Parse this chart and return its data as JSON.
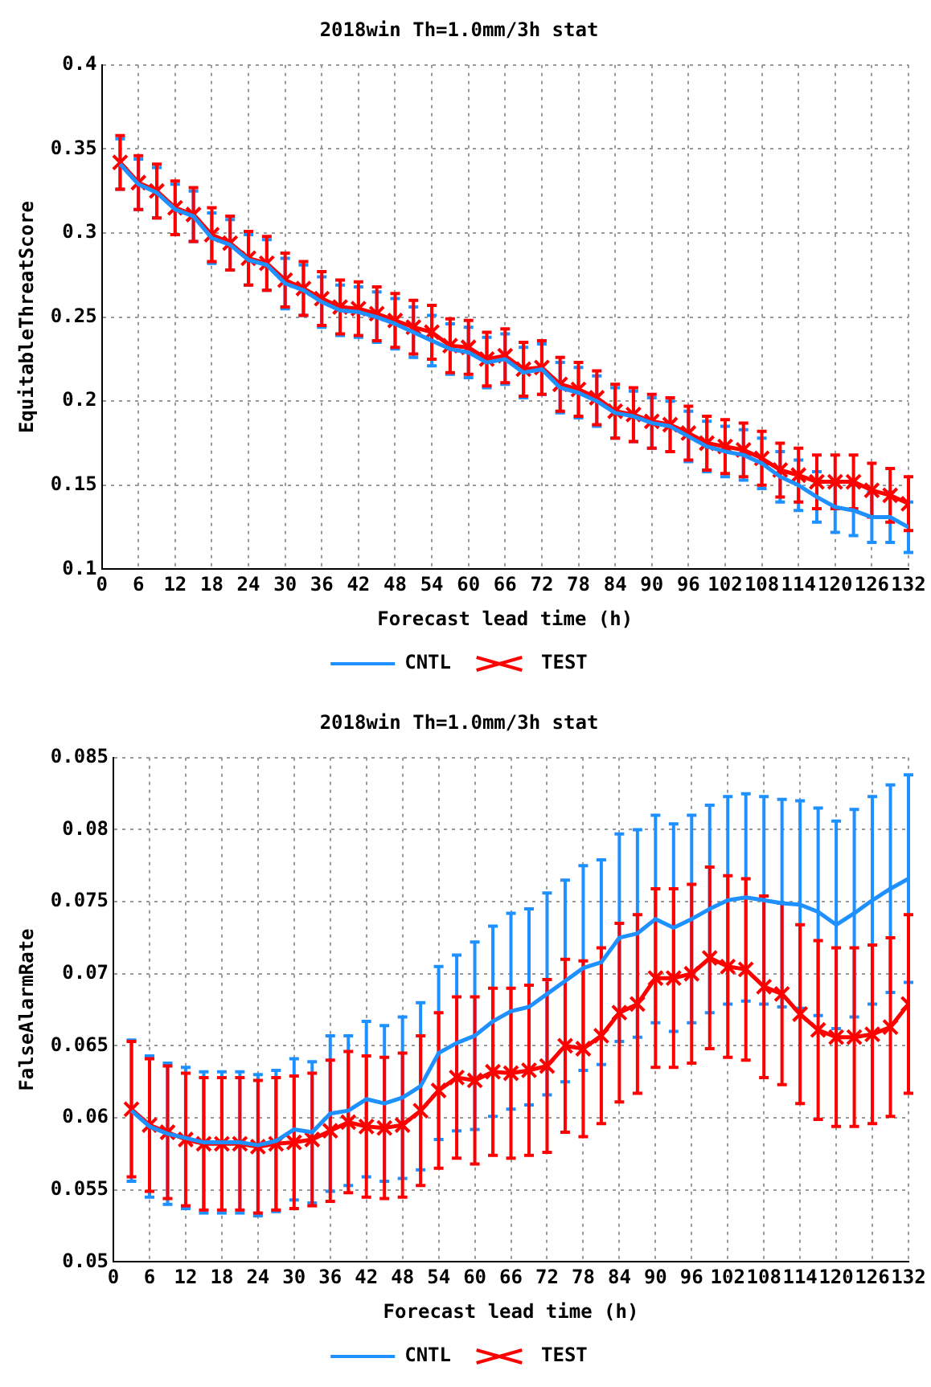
{
  "chart_data": [
    {
      "type": "line",
      "title": "2018win Th=1.0mm/3h stat",
      "xlabel": "Forecast lead time (h)",
      "ylabel": "EquitableThreatScore",
      "x": [
        3,
        6,
        9,
        12,
        15,
        18,
        21,
        24,
        27,
        30,
        33,
        36,
        39,
        42,
        45,
        48,
        51,
        54,
        57,
        60,
        63,
        66,
        69,
        72,
        75,
        78,
        81,
        84,
        87,
        90,
        93,
        96,
        99,
        102,
        105,
        108,
        111,
        114,
        117,
        120,
        123,
        126,
        129,
        132
      ],
      "series": [
        {
          "name": "CNTL",
          "color": "#1e90ff",
          "marker": "none",
          "values": [
            0.341,
            0.329,
            0.324,
            0.314,
            0.31,
            0.297,
            0.293,
            0.284,
            0.281,
            0.27,
            0.266,
            0.259,
            0.254,
            0.253,
            0.25,
            0.246,
            0.241,
            0.236,
            0.231,
            0.229,
            0.223,
            0.225,
            0.217,
            0.219,
            0.208,
            0.205,
            0.2,
            0.193,
            0.191,
            0.187,
            0.185,
            0.179,
            0.173,
            0.17,
            0.168,
            0.163,
            0.155,
            0.15,
            0.143,
            0.137,
            0.135,
            0.131,
            0.131,
            0.125
          ],
          "errors": [
            0.015,
            0.015,
            0.015,
            0.015,
            0.015,
            0.015,
            0.015,
            0.015,
            0.015,
            0.015,
            0.015,
            0.015,
            0.015,
            0.015,
            0.015,
            0.015,
            0.015,
            0.015,
            0.015,
            0.015,
            0.015,
            0.015,
            0.015,
            0.015,
            0.015,
            0.015,
            0.015,
            0.015,
            0.015,
            0.015,
            0.015,
            0.015,
            0.015,
            0.015,
            0.015,
            0.015,
            0.015,
            0.015,
            0.015,
            0.015,
            0.015,
            0.015,
            0.015,
            0.015
          ]
        },
        {
          "name": "TEST",
          "color": "#ff0000",
          "marker": "cross",
          "values": [
            0.342,
            0.33,
            0.325,
            0.315,
            0.311,
            0.299,
            0.294,
            0.285,
            0.282,
            0.272,
            0.267,
            0.261,
            0.256,
            0.255,
            0.252,
            0.248,
            0.244,
            0.241,
            0.233,
            0.232,
            0.225,
            0.227,
            0.219,
            0.22,
            0.21,
            0.207,
            0.202,
            0.194,
            0.192,
            0.188,
            0.186,
            0.181,
            0.175,
            0.173,
            0.171,
            0.166,
            0.159,
            0.156,
            0.152,
            0.152,
            0.152,
            0.147,
            0.144,
            0.139
          ],
          "errors": [
            0.016,
            0.016,
            0.016,
            0.016,
            0.016,
            0.016,
            0.016,
            0.016,
            0.016,
            0.016,
            0.016,
            0.016,
            0.016,
            0.016,
            0.016,
            0.016,
            0.016,
            0.016,
            0.016,
            0.016,
            0.016,
            0.016,
            0.016,
            0.016,
            0.016,
            0.016,
            0.016,
            0.016,
            0.016,
            0.016,
            0.016,
            0.016,
            0.016,
            0.016,
            0.016,
            0.016,
            0.016,
            0.016,
            0.016,
            0.016,
            0.016,
            0.016,
            0.016,
            0.016
          ]
        }
      ],
      "xlim": [
        0,
        132
      ],
      "xticks": [
        0,
        6,
        12,
        18,
        24,
        30,
        36,
        42,
        48,
        54,
        60,
        66,
        72,
        78,
        84,
        90,
        96,
        102,
        108,
        114,
        120,
        126,
        132
      ],
      "ylim": [
        0.1,
        0.4
      ],
      "yticks": [
        0.1,
        0.15,
        0.2,
        0.25,
        0.3,
        0.35,
        0.4
      ],
      "grid": true,
      "legend": "bottom",
      "line_style": "solid"
    },
    {
      "type": "line",
      "title": "2018win Th=1.0mm/3h stat",
      "xlabel": "Forecast lead time (h)",
      "ylabel": "FalseAlarmRate",
      "x": [
        3,
        6,
        9,
        12,
        15,
        18,
        21,
        24,
        27,
        30,
        33,
        36,
        39,
        42,
        45,
        48,
        51,
        54,
        57,
        60,
        63,
        66,
        69,
        72,
        75,
        78,
        81,
        84,
        87,
        90,
        93,
        96,
        99,
        102,
        105,
        108,
        111,
        114,
        117,
        120,
        123,
        126,
        129,
        132
      ],
      "series": [
        {
          "name": "CNTL",
          "color": "#1e90ff",
          "marker": "none",
          "values": [
            0.0605,
            0.0594,
            0.0589,
            0.0586,
            0.0583,
            0.0583,
            0.0583,
            0.0581,
            0.0584,
            0.0592,
            0.059,
            0.0603,
            0.0605,
            0.0613,
            0.061,
            0.0614,
            0.0622,
            0.0645,
            0.0652,
            0.0657,
            0.0667,
            0.0674,
            0.0677,
            0.0686,
            0.0695,
            0.0704,
            0.0708,
            0.0725,
            0.0728,
            0.0738,
            0.0732,
            0.0738,
            0.0745,
            0.0751,
            0.0753,
            0.0751,
            0.0749,
            0.0748,
            0.0743,
            0.0734,
            0.0742,
            0.0751,
            0.0759,
            0.0766
          ],
          "errors": [
            0.0049,
            0.0049,
            0.0049,
            0.0049,
            0.0049,
            0.0049,
            0.0049,
            0.0049,
            0.0049,
            0.0049,
            0.0049,
            0.0054,
            0.0052,
            0.0054,
            0.0054,
            0.0056,
            0.0058,
            0.006,
            0.0061,
            0.0065,
            0.0066,
            0.0068,
            0.0068,
            0.007,
            0.007,
            0.0071,
            0.0071,
            0.0072,
            0.0072,
            0.0072,
            0.0072,
            0.0072,
            0.0072,
            0.0072,
            0.0072,
            0.0072,
            0.0072,
            0.0072,
            0.0072,
            0.0072,
            0.0072,
            0.0072,
            0.0072,
            0.0072
          ]
        },
        {
          "name": "TEST",
          "color": "#ff0000",
          "marker": "cross",
          "values": [
            0.0606,
            0.0595,
            0.059,
            0.0585,
            0.0582,
            0.0582,
            0.0582,
            0.058,
            0.0582,
            0.0583,
            0.0585,
            0.0591,
            0.0597,
            0.0594,
            0.0593,
            0.0595,
            0.0605,
            0.0619,
            0.0628,
            0.0626,
            0.0632,
            0.0631,
            0.0633,
            0.0636,
            0.065,
            0.0648,
            0.0657,
            0.0673,
            0.0679,
            0.0697,
            0.0697,
            0.07,
            0.0711,
            0.0705,
            0.0703,
            0.0691,
            0.0686,
            0.0672,
            0.0661,
            0.0656,
            0.0656,
            0.0658,
            0.0663,
            0.0679
          ],
          "errors": [
            0.0047,
            0.0046,
            0.0046,
            0.0046,
            0.0046,
            0.0046,
            0.0046,
            0.0046,
            0.0046,
            0.0046,
            0.0046,
            0.0049,
            0.0049,
            0.0049,
            0.0049,
            0.005,
            0.0052,
            0.0054,
            0.0056,
            0.0058,
            0.0058,
            0.0059,
            0.0059,
            0.006,
            0.006,
            0.0061,
            0.0061,
            0.0062,
            0.0062,
            0.0062,
            0.0062,
            0.0062,
            0.0063,
            0.0063,
            0.0063,
            0.0063,
            0.0063,
            0.0062,
            0.0062,
            0.0062,
            0.0062,
            0.0062,
            0.0062,
            0.0062
          ]
        }
      ],
      "xlim": [
        0,
        132
      ],
      "xticks": [
        0,
        6,
        12,
        18,
        24,
        30,
        36,
        42,
        48,
        54,
        60,
        66,
        72,
        78,
        84,
        90,
        96,
        102,
        108,
        114,
        120,
        126,
        132
      ],
      "ylim": [
        0.05,
        0.085
      ],
      "yticks": [
        0.05,
        0.055,
        0.06,
        0.065,
        0.07,
        0.075,
        0.08,
        0.085
      ],
      "grid": true,
      "legend": "bottom",
      "line_style": "solid"
    }
  ]
}
